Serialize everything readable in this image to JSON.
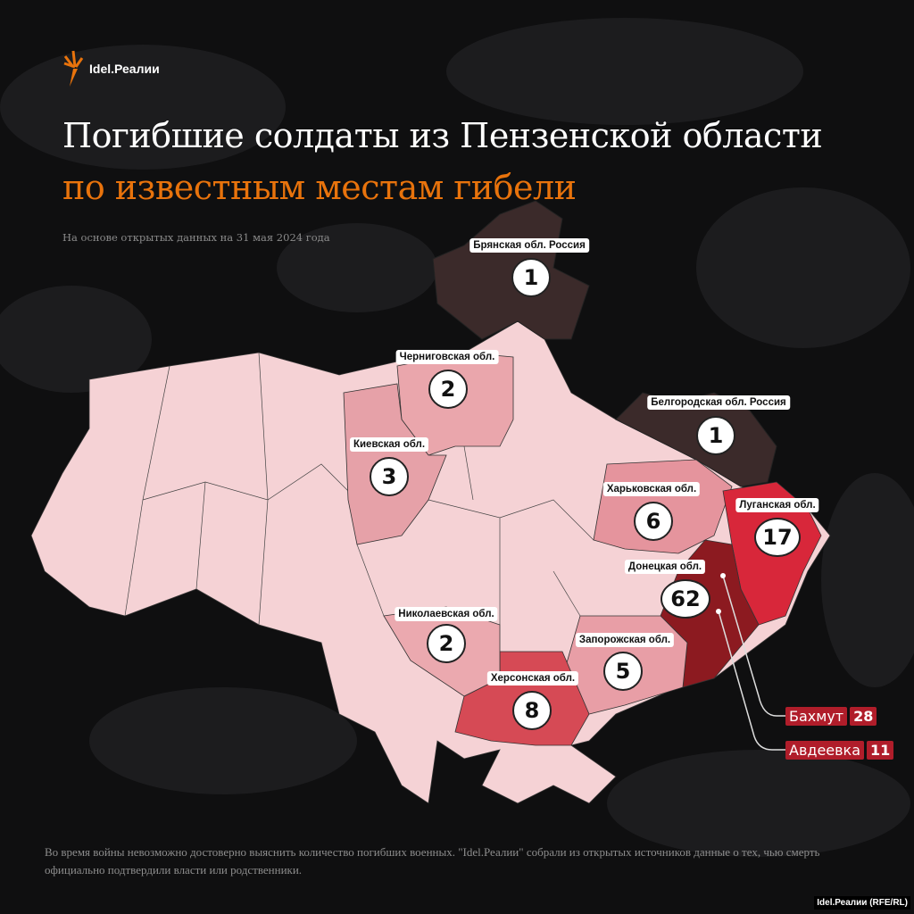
{
  "brand": {
    "logo_text": "Idel.Реалии",
    "credit": "Idel.Реалии (RFE/RL)"
  },
  "title": {
    "line1": "Погибшие солдаты из Пензенской области",
    "line2": "по известным местам гибели"
  },
  "subtitle": "На основе открытых данных на 31 мая 2024 года",
  "note": "Во время войны невозможно достоверно выяснить количество погибших военных. \"Idel.Реалии\" собрали из открытых источников данные о тех, чью смерть официально подтвердили власти или родственники.",
  "colors": {
    "ukraine_base": "#f5d2d5",
    "russia": "#3b2a2a",
    "accent": "#e8730c",
    "city_badge": "#b01d2a"
  },
  "regions": [
    {
      "name": "Брянская обл. Россия",
      "value": "1"
    },
    {
      "name": "Черниговская обл.",
      "value": "2"
    },
    {
      "name": "Белгородская обл. Россия",
      "value": "1"
    },
    {
      "name": "Киевская обл.",
      "value": "3"
    },
    {
      "name": "Харьковская обл.",
      "value": "6"
    },
    {
      "name": "Луганская обл.",
      "value": "17"
    },
    {
      "name": "Донецкая обл.",
      "value": "62"
    },
    {
      "name": "Николаевская обл.",
      "value": "2"
    },
    {
      "name": "Запорожская обл.",
      "value": "5"
    },
    {
      "name": "Херсонская обл.",
      "value": "8"
    }
  ],
  "cities": [
    {
      "name": "Бахмут",
      "value": "28"
    },
    {
      "name": "Авдеевка",
      "value": "11"
    }
  ]
}
